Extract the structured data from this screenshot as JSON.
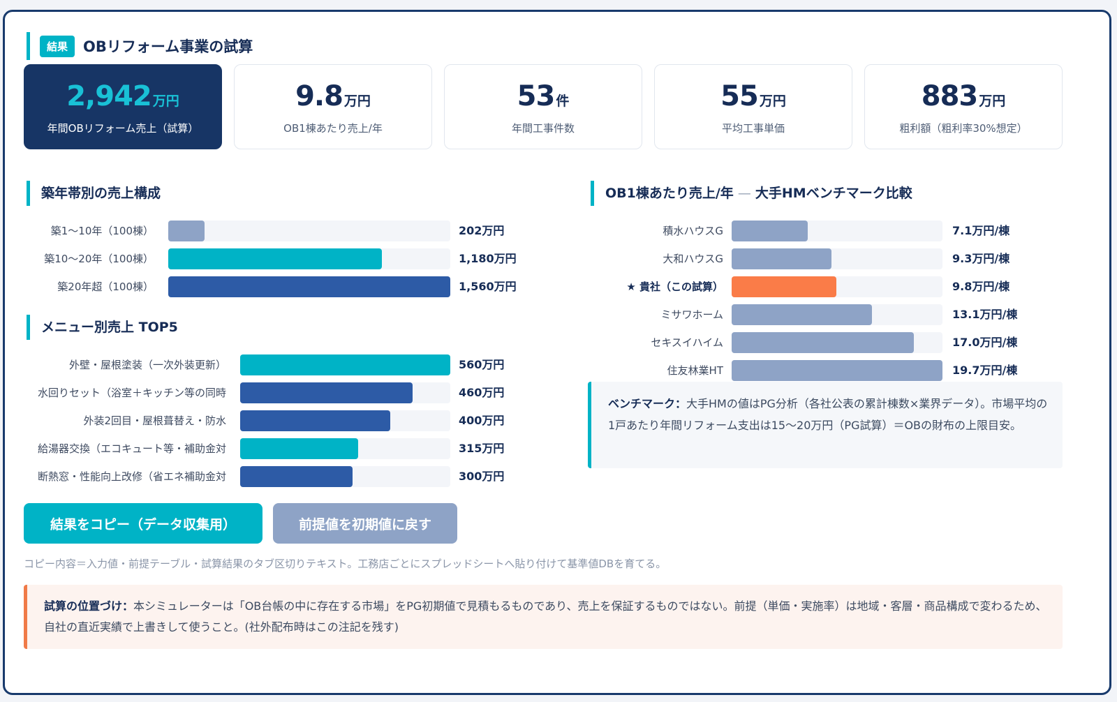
{
  "header": {
    "badge": "結果",
    "title": "OBリフォーム事業の試算"
  },
  "kpis": [
    {
      "value": "2,942",
      "unit": "万円",
      "label": "年間OBリフォーム売上（試算）"
    },
    {
      "value": "9.8",
      "unit": "万円",
      "label": "OB1棟あたり売上/年"
    },
    {
      "value": "53",
      "unit": "件",
      "label": "年間工事件数"
    },
    {
      "value": "55",
      "unit": "万円",
      "label": "平均工事単価"
    },
    {
      "value": "883",
      "unit": "万円",
      "label": "粗利額（粗利率30%想定）"
    }
  ],
  "age_section": {
    "title": "築年帯別の売上構成",
    "rows": [
      {
        "label": "築1〜10年（100棟）",
        "value": 202,
        "display": "202万円",
        "color": "#8ea3c6"
      },
      {
        "label": "築10〜20年（100棟）",
        "value": 1180,
        "display": "1,180万円",
        "color": "#00b3c6"
      },
      {
        "label": "築20年超（100棟）",
        "value": 1560,
        "display": "1,560万円",
        "color": "#2d5ba6"
      }
    ]
  },
  "menu_section": {
    "title": "メニュー別売上 TOP5",
    "rows": [
      {
        "label": "外壁・屋根塗装（一次外装更新）",
        "value": 560,
        "display": "560万円",
        "color": "#00b3c6"
      },
      {
        "label": "水回りセット（浴室＋キッチン等の同時",
        "value": 460,
        "display": "460万円",
        "color": "#2d5ba6"
      },
      {
        "label": "外装2回目・屋根葺替え・防水",
        "value": 400,
        "display": "400万円",
        "color": "#2d5ba6"
      },
      {
        "label": "給湯器交換（エコキュート等・補助金対",
        "value": 315,
        "display": "315万円",
        "color": "#00b3c6"
      },
      {
        "label": "断熱窓・性能向上改修（省エネ補助金対",
        "value": 300,
        "display": "300万円",
        "color": "#2d5ba6"
      }
    ]
  },
  "bench_section": {
    "title_main": "OB1棟あたり売上/年",
    "title_sep": " — ",
    "title_tail": "大手HMベンチマーク比較",
    "rows": [
      {
        "label": "積水ハウスG",
        "value": 7.1,
        "display": "7.1万円/棟",
        "color": "#8ea3c6",
        "highlight": false
      },
      {
        "label": "大和ハウスG",
        "value": 9.3,
        "display": "9.3万円/棟",
        "color": "#8ea3c6",
        "highlight": false
      },
      {
        "label": "★ 貴社（この試算）",
        "value": 9.8,
        "display": "9.8万円/棟",
        "color": "#fa7c48",
        "highlight": true
      },
      {
        "label": "ミサワホーム",
        "value": 13.1,
        "display": "13.1万円/棟",
        "color": "#8ea3c6",
        "highlight": false
      },
      {
        "label": "セキスイハイム",
        "value": 17.0,
        "display": "17.0万円/棟",
        "color": "#8ea3c6",
        "highlight": false
      },
      {
        "label": "住友林業HT",
        "value": 19.7,
        "display": "19.7万円/棟",
        "color": "#8ea3c6",
        "highlight": false
      }
    ],
    "note_bold": "ベンチマーク：",
    "note_text": "大手HMの値はPG分析（各社公表の累計棟数×業界データ）。市場平均の1戸あたり年間リフォーム支出は15〜20万円（PG試算）＝OBの財布の上限目安。"
  },
  "actions": {
    "copy_label": "結果をコピー（データ収集用）",
    "reset_label": "前提値を初期値に戻す",
    "copy_note": "コピー内容＝入力値・前提テーブル・試算結果のタブ区切りテキスト。工務店ごとにスプレッドシートへ貼り付けて基準値DBを育てる。"
  },
  "notice": {
    "bold": "試算の位置づけ：",
    "text": "本シミュレーターは「OB台帳の中に存在する市場」をPG初期値で見積もるものであり、売上を保証するものではない。前提（単価・実施率）は地域・客層・商品構成で変わるため、自社の直近実績で上書きして使うこと。(社外配布時はこの注記を残す)"
  },
  "colors": {
    "accent": "#00b3c6",
    "navy": "#173565",
    "highlight": "#fa7c48",
    "muted": "#8ea3c6",
    "warn": "#f07a48"
  }
}
